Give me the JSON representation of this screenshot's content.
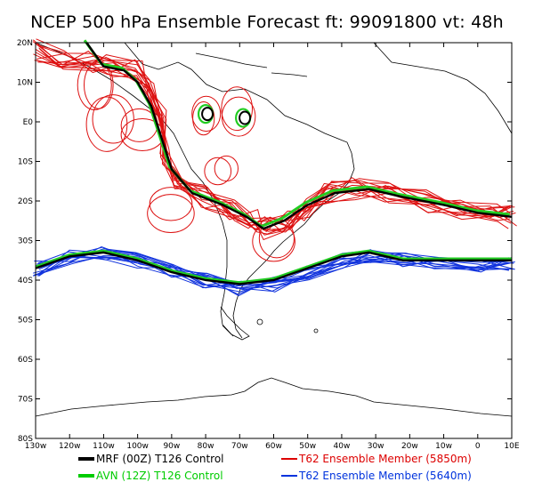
{
  "title": "NCEP 500 hPa Ensemble Forecast   ft: 99091800 vt: 48h",
  "lat_labels": [
    "20N",
    "10N",
    "E0",
    "10S",
    "20S",
    "30S",
    "40S",
    "50S",
    "60S",
    "70S",
    "80S"
  ],
  "lon_labels": [
    "130w",
    "120w",
    "110w",
    "100w",
    "90w",
    "80w",
    "70w",
    "60w",
    "50w",
    "40w",
    "30w",
    "20w",
    "10w",
    "0",
    "10E"
  ],
  "legend": [
    {
      "label": "MRF (00Z) T126 Control",
      "color": "#000000",
      "width": 3
    },
    {
      "label": "AVN (12Z) T126 Control",
      "color": "#00cc00",
      "width": 3
    },
    {
      "label": "T62 Ensemble Member (5850m)",
      "color": "#dd0000",
      "width": 1
    },
    {
      "label": "T62 Ensemble Member (5640m)",
      "color": "#0033dd",
      "width": 1
    }
  ],
  "colors": {
    "mrf": "#000000",
    "avn": "#22cc22",
    "ens5850": "#dd1111",
    "ens5640": "#1133dd",
    "coast": "#000000"
  },
  "map": {
    "projection": "cylindrical",
    "lon_range": [
      -130,
      10
    ],
    "lat_range": [
      -80,
      20
    ]
  }
}
